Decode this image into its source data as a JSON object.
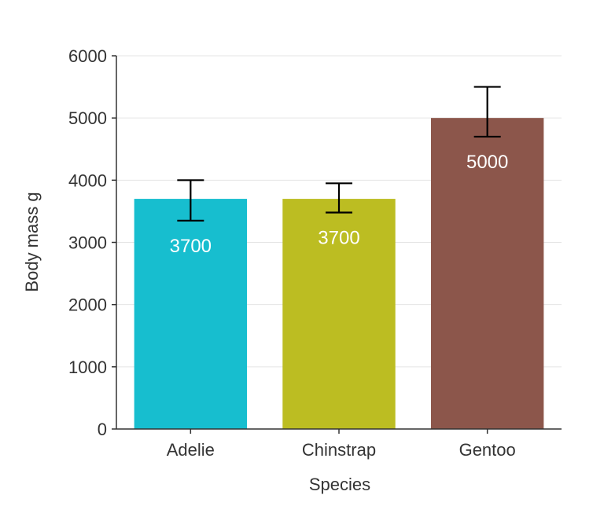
{
  "chart_data": {
    "type": "bar",
    "title": "",
    "xlabel": "Species",
    "ylabel": "Body mass g",
    "ylim": [
      0,
      6000
    ],
    "yticks": [
      0,
      1000,
      2000,
      3000,
      4000,
      5000,
      6000
    ],
    "grid": true,
    "categories": [
      "Adelie",
      "Chinstrap",
      "Gentoo"
    ],
    "values": [
      3700,
      3700,
      5000
    ],
    "error_bars": [
      {
        "low": 3350,
        "high": 4000
      },
      {
        "low": 3480,
        "high": 3950
      },
      {
        "low": 4700,
        "high": 5500
      }
    ],
    "data_labels": [
      "3700",
      "3700",
      "5000"
    ],
    "colors": [
      "#17becf",
      "#bcbd22",
      "#8c564b"
    ],
    "error_bar_color": "#000000",
    "grid_color": "#e5e5e5",
    "axis_color": "#333333"
  }
}
